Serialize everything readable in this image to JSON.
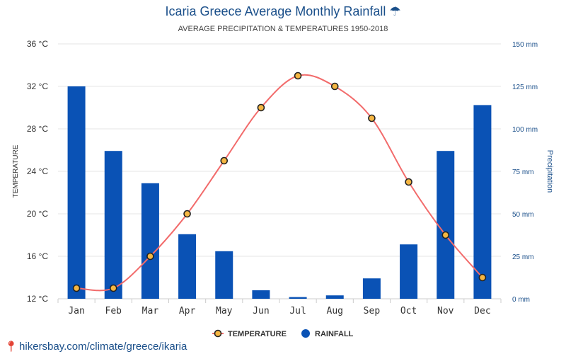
{
  "page": {
    "title": "Icaria Greece Average Monthly Rainfall ☂",
    "subtitle": "AVERAGE PRECIPITATION & TEMPERATURES 1950-2018",
    "footer": "hikersbay.com/climate/greece/ikaria"
  },
  "colors": {
    "bar": "#0a52b5",
    "line": "#f26b6b",
    "marker_fill": "#f5b642",
    "marker_stroke": "#222222",
    "grid": "#e6e6e6",
    "title": "#1a4f8a"
  },
  "chart_data": {
    "type": "bar+line",
    "categories": [
      "Jan",
      "Feb",
      "Mar",
      "Apr",
      "May",
      "Jun",
      "Jul",
      "Aug",
      "Sep",
      "Oct",
      "Nov",
      "Dec"
    ],
    "series": [
      {
        "name": "TEMPERATURE",
        "type": "line",
        "axis": "left",
        "values": [
          13,
          13,
          16,
          20,
          25,
          30,
          33,
          32,
          29,
          23,
          18,
          14
        ]
      },
      {
        "name": "RAINFALL",
        "type": "bar",
        "axis": "right",
        "values": [
          125,
          87,
          68,
          38,
          28,
          5,
          1,
          2,
          12,
          32,
          87,
          114
        ]
      }
    ],
    "left_axis": {
      "title": "TEMPERATURE",
      "range": [
        12,
        36
      ],
      "ticks": [
        "12 °C",
        "16 °C",
        "20 °C",
        "24 °C",
        "28 °C",
        "32 °C",
        "36 °C"
      ]
    },
    "right_axis": {
      "title": "Precipitation",
      "range": [
        0,
        150
      ],
      "ticks": [
        "0 mm",
        "25 mm",
        "50 mm",
        "75 mm",
        "100 mm",
        "125 mm",
        "150 mm"
      ]
    },
    "grid": true,
    "legend": "bottom-center"
  }
}
